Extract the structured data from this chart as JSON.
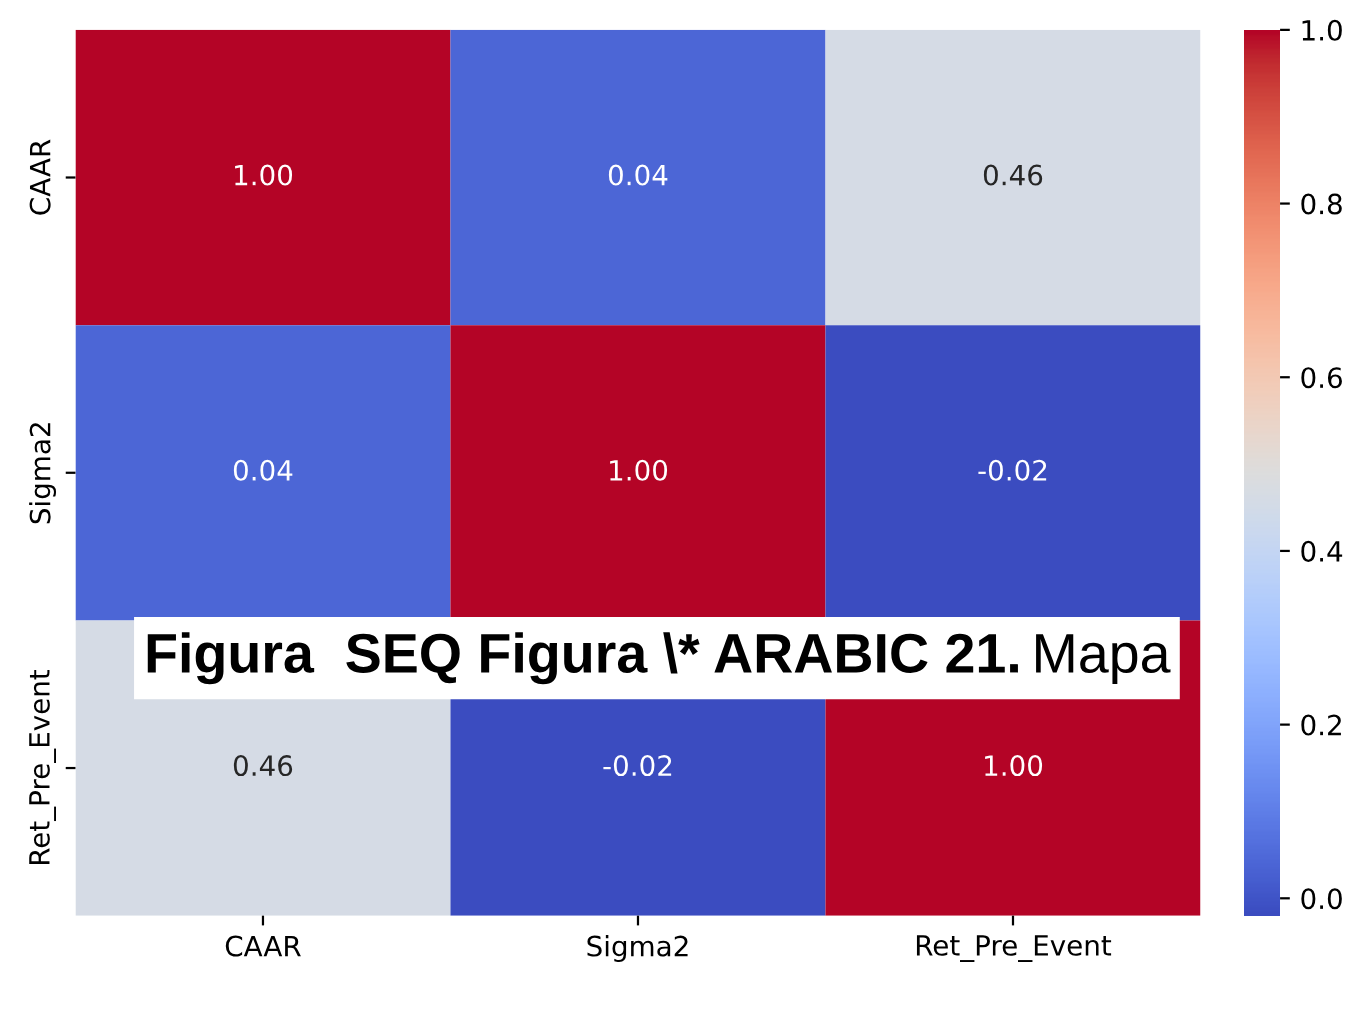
{
  "chart_data": {
    "type": "heatmap",
    "categories": [
      "CAAR",
      "Sigma2",
      "Ret_Pre_Event"
    ],
    "y_categories": [
      "CAAR",
      "Sigma2",
      "Ret_Pre_Event"
    ],
    "cells": [
      [
        1.0,
        0.04,
        0.46
      ],
      [
        0.04,
        1.0,
        -0.02
      ],
      [
        0.46,
        -0.02,
        1.0
      ]
    ],
    "cell_labels": [
      [
        "1.00",
        "0.04",
        "0.46"
      ],
      [
        "0.04",
        "1.00",
        "-0.02"
      ],
      [
        "0.46",
        "-0.02",
        "1.00"
      ]
    ],
    "clim": [
      -0.02,
      1.0
    ],
    "cticks": [
      {
        "value": 0.0,
        "label": "0.0"
      },
      {
        "value": 0.2,
        "label": "0.2"
      },
      {
        "value": 0.4,
        "label": "0.4"
      },
      {
        "value": 0.6,
        "label": "0.6"
      },
      {
        "value": 0.8,
        "label": "0.8"
      },
      {
        "value": 1.0,
        "label": "1.0"
      }
    ],
    "annotations": [
      "Figura  SEQ Figura \\* ARABIC 21.",
      "Mapa"
    ]
  }
}
